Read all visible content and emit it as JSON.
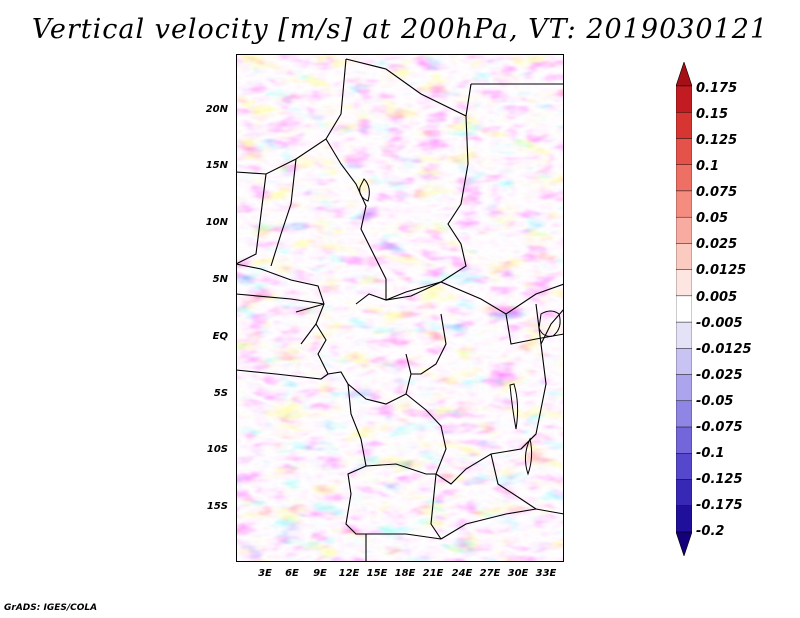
{
  "title": "Vertical velocity [m/s] at 200hPa, VT: 2019030121",
  "footer": "GrADS: IGES/COLA",
  "map": {
    "lat_ticks": [
      "20N",
      "15N",
      "10N",
      "5N",
      "EQ",
      "5S",
      "10S",
      "15S"
    ],
    "lon_ticks": [
      "3E",
      "6E",
      "9E",
      "12E",
      "15E",
      "18E",
      "21E",
      "24E",
      "27E",
      "30E",
      "33E"
    ],
    "variable": "vertical velocity",
    "units": "m/s",
    "level": "200hPa",
    "valid_time": "2019030121"
  },
  "colorbar": {
    "labels": [
      "0.175",
      "0.15",
      "0.125",
      "0.1",
      "0.075",
      "0.05",
      "0.025",
      "0.0125",
      "0.005",
      "-0.005",
      "-0.0125",
      "-0.025",
      "-0.05",
      "-0.075",
      "-0.1",
      "-0.125",
      "-0.175",
      "-0.2"
    ],
    "colors": [
      "#a50f15",
      "#c21c22",
      "#d73531",
      "#e4524a",
      "#ee6f63",
      "#f48d80",
      "#f8aba0",
      "#fbcbc2",
      "#fde6e1",
      "#ffffff",
      "#e4e2f7",
      "#c8c3f2",
      "#aca4ec",
      "#8f85e4",
      "#7366da",
      "#5548cc",
      "#3828b6",
      "#1f0f9a",
      "#14007a"
    ]
  }
}
